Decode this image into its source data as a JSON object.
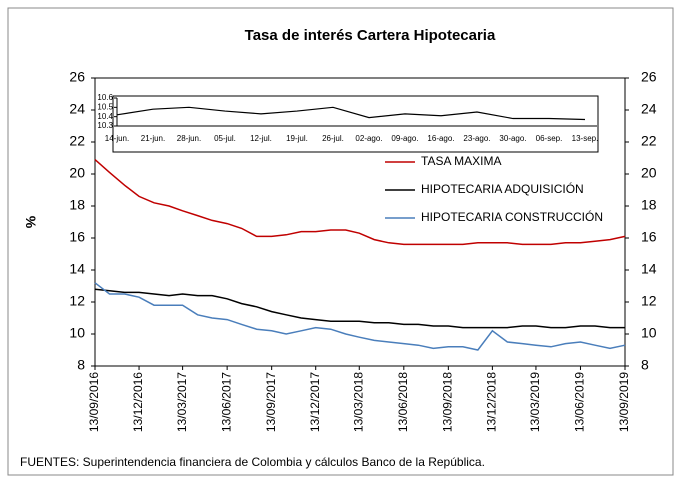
{
  "chart_data": [
    {
      "type": "line",
      "title": "Tasa de interés Cartera Hipotecaria",
      "y_label": "%",
      "footnote": "FUENTES: Superintendencia financiera de Colombia y cálculos Banco de la República.",
      "x": [
        "13/09/2016",
        "13/10/2016",
        "13/11/2016",
        "13/12/2016",
        "13/01/2017",
        "13/02/2017",
        "13/03/2017",
        "13/04/2017",
        "13/05/2017",
        "13/06/2017",
        "13/07/2017",
        "13/08/2017",
        "13/09/2017",
        "13/10/2017",
        "13/11/2017",
        "13/12/2017",
        "13/01/2018",
        "13/02/2018",
        "13/03/2018",
        "13/04/2018",
        "13/05/2018",
        "13/06/2018",
        "13/07/2018",
        "13/08/2018",
        "13/09/2018",
        "13/10/2018",
        "13/11/2018",
        "13/12/2018",
        "13/01/2019",
        "13/02/2019",
        "13/03/2019",
        "13/04/2019",
        "13/05/2019",
        "13/06/2019",
        "13/07/2019",
        "13/08/2019",
        "13/09/2019"
      ],
      "xlim": [
        "13/09/2016",
        "13/09/2019"
      ],
      "xticks": [
        "13/09/2016",
        "13/12/2016",
        "13/03/2017",
        "13/06/2017",
        "13/09/2017",
        "13/12/2017",
        "13/03/2018",
        "13/06/2018",
        "13/09/2018",
        "13/12/2018",
        "13/03/2019",
        "13/06/2019",
        "13/09/2019"
      ],
      "ylim": [
        8,
        26
      ],
      "yticks": [
        8,
        10,
        12,
        14,
        16,
        18,
        20,
        22,
        24,
        26
      ],
      "y2lim": [
        8,
        26
      ],
      "y2ticks": [
        8,
        10,
        12,
        14,
        16,
        18,
        20,
        22,
        24,
        26
      ],
      "series": [
        {
          "name": "TASA MAXIMA",
          "color": "#c00000",
          "values": [
            20.9,
            20.1,
            19.3,
            18.6,
            18.2,
            18.0,
            17.7,
            17.4,
            17.1,
            16.9,
            16.6,
            16.1,
            16.1,
            16.2,
            16.4,
            16.4,
            16.5,
            16.5,
            16.3,
            15.9,
            15.7,
            15.6,
            15.6,
            15.6,
            15.6,
            15.6,
            15.7,
            15.7,
            15.7,
            15.6,
            15.6,
            15.6,
            15.7,
            15.7,
            15.8,
            15.9,
            16.1
          ]
        },
        {
          "name": "HIPOTECARIA ADQUISICIÓN",
          "color": "#000000",
          "values": [
            12.8,
            12.7,
            12.6,
            12.6,
            12.5,
            12.4,
            12.5,
            12.4,
            12.4,
            12.2,
            11.9,
            11.7,
            11.4,
            11.2,
            11.0,
            10.9,
            10.8,
            10.8,
            10.8,
            10.7,
            10.7,
            10.6,
            10.6,
            10.5,
            10.5,
            10.4,
            10.4,
            10.4,
            10.4,
            10.5,
            10.5,
            10.4,
            10.4,
            10.5,
            10.5,
            10.4,
            10.4
          ]
        },
        {
          "name": "HIPOTECARIA CONSTRUCCIÓN",
          "color": "#4a7ebb",
          "values": [
            13.2,
            12.5,
            12.5,
            12.3,
            11.8,
            11.8,
            11.8,
            11.2,
            11.0,
            10.9,
            10.6,
            10.3,
            10.2,
            10.0,
            10.2,
            10.4,
            10.3,
            10.0,
            9.8,
            9.6,
            9.5,
            9.4,
            9.3,
            9.1,
            9.2,
            9.2,
            9.0,
            10.2,
            9.5,
            9.4,
            9.3,
            9.2,
            9.4,
            9.5,
            9.3,
            9.1,
            9.3
          ]
        }
      ]
    },
    {
      "type": "line",
      "categories": [
        "14-jun.",
        "21-jun.",
        "28-jun.",
        "05-jul.",
        "12-jul.",
        "19-jul.",
        "26-jul.",
        "02-ago.",
        "09-ago.",
        "16-ago.",
        "23-ago.",
        "30-ago.",
        "06-sep.",
        "13-sep."
      ],
      "ylim": [
        10.3,
        10.6
      ],
      "yticks": [
        10.3,
        10.4,
        10.5,
        10.6
      ],
      "series": [
        {
          "color": "#000000",
          "values": [
            10.42,
            10.48,
            10.5,
            10.46,
            10.43,
            10.46,
            10.5,
            10.39,
            10.43,
            10.41,
            10.45,
            10.38,
            10.38,
            10.37
          ]
        }
      ]
    }
  ]
}
